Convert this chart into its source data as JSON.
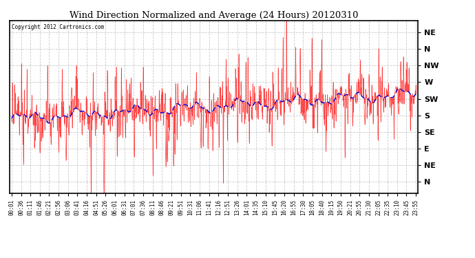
{
  "title": "Wind Direction Normalized and Average (24 Hours) 20120310",
  "copyright_text": "Copyright 2012 Cartronics.com",
  "background_color": "#ffffff",
  "plot_bg_color": "#ffffff",
  "grid_color": "#bbbbbb",
  "red_line_color": "#ff0000",
  "blue_line_color": "#0000cc",
  "ytick_labels": [
    "NE",
    "N",
    "NW",
    "W",
    "SW",
    "S",
    "SE",
    "E",
    "NE",
    "N"
  ],
  "ytick_values": [
    10,
    9,
    8,
    7,
    6,
    5,
    4,
    3,
    2,
    1
  ],
  "ylim": [
    0.3,
    10.7
  ],
  "num_points": 576,
  "seed": 12345
}
